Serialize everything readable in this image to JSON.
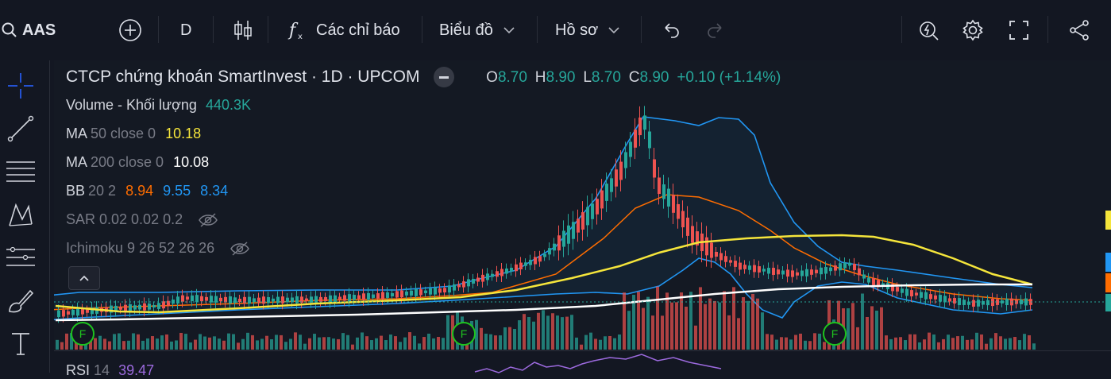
{
  "toolbar": {
    "symbol": "AAS",
    "interval": "D",
    "indicators_label": "Các chỉ báo",
    "chart_type_label": "Biểu đồ",
    "profile_label": "Hồ sơ"
  },
  "legend": {
    "title": "CTCP chứng khoán SmartInvest · 1D · UPCOM",
    "ohlc": {
      "o_label": "O",
      "o": "8.70",
      "h_label": "H",
      "h": "8.90",
      "l_label": "L",
      "l": "8.70",
      "c_label": "C",
      "c": "8.90",
      "change": "+0.10 (+1.14%)"
    },
    "volume": {
      "label": "Volume - Khối lượng",
      "value": "440.3K"
    },
    "ma50": {
      "label": "MA",
      "params": "50 close 0",
      "value": "10.18"
    },
    "ma200": {
      "label": "MA",
      "params": "200 close 0",
      "value": "10.08"
    },
    "bb": {
      "label": "BB",
      "params": "20 2",
      "v1": "8.94",
      "v2": "9.55",
      "v3": "8.34"
    },
    "sar": {
      "label": "SAR 0.02 0.02 0.2"
    },
    "ichimoku": {
      "label": "Ichimoku 9 26 52 26 26"
    },
    "rsi": {
      "label": "RSI",
      "params": "14",
      "value": "39.47"
    }
  },
  "markers": [
    "F",
    "F",
    "F"
  ],
  "colors": {
    "up": "#26a69a",
    "down": "#ef5350",
    "ma50": "#f5e53b",
    "ma200": "#ffffff",
    "bb_upper": "#2196f3",
    "bb_basis": "#ff6d00",
    "bb_lower": "#2196f3",
    "accent": "#2962ff"
  },
  "icons": [
    "search-icon",
    "add-symbol-icon",
    "candles-icon",
    "fx-icon",
    "chevron-down-icon",
    "undo-icon",
    "redo-icon",
    "alert-icon",
    "gear-icon",
    "fullscreen-icon",
    "share-icon",
    "crosshair-icon",
    "trendline-icon",
    "fib-icon",
    "pattern-icon",
    "forecast-icon",
    "brush-icon",
    "text-icon",
    "eye-off-icon",
    "chevron-up-icon"
  ]
}
